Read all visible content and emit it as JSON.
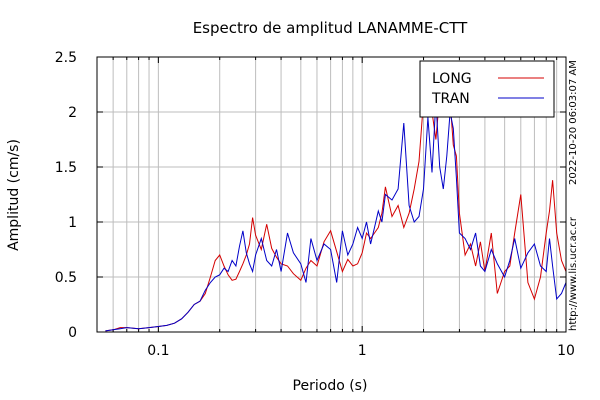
{
  "chart_data": {
    "type": "line",
    "title": "Espectro de amplitud LANAMME-CTT",
    "xlabel": "Periodo (s)",
    "ylabel": "Amplitud (cm/s)",
    "xscale": "log",
    "xlim": [
      0.05,
      10
    ],
    "ylim": [
      0,
      2.5
    ],
    "xticks": [
      {
        "v": 0.1,
        "label": "0.1"
      },
      {
        "v": 1,
        "label": "1"
      },
      {
        "v": 10,
        "label": "10"
      }
    ],
    "yticks": [
      {
        "v": 0,
        "label": "0"
      },
      {
        "v": 0.5,
        "label": "0.5"
      },
      {
        "v": 1,
        "label": "1"
      },
      {
        "v": 1.5,
        "label": "1.5"
      },
      {
        "v": 2,
        "label": "2"
      },
      {
        "v": 2.5,
        "label": "2.5"
      }
    ],
    "grid": true,
    "legend_position": "top-right",
    "series": [
      {
        "name": "LONG",
        "color": "#d40000",
        "x": [
          0.055,
          0.06,
          0.065,
          0.07,
          0.08,
          0.09,
          0.1,
          0.11,
          0.12,
          0.13,
          0.14,
          0.15,
          0.16,
          0.17,
          0.18,
          0.19,
          0.2,
          0.21,
          0.22,
          0.23,
          0.24,
          0.25,
          0.26,
          0.27,
          0.28,
          0.29,
          0.3,
          0.32,
          0.34,
          0.36,
          0.38,
          0.4,
          0.43,
          0.46,
          0.5,
          0.53,
          0.56,
          0.6,
          0.65,
          0.7,
          0.75,
          0.8,
          0.85,
          0.9,
          0.95,
          1.0,
          1.05,
          1.1,
          1.15,
          1.2,
          1.25,
          1.3,
          1.4,
          1.5,
          1.6,
          1.7,
          1.8,
          1.9,
          2.0,
          2.1,
          2.2,
          2.3,
          2.4,
          2.5,
          2.6,
          2.7,
          2.8,
          2.9,
          3.0,
          3.2,
          3.4,
          3.6,
          3.8,
          4.0,
          4.3,
          4.6,
          5.0,
          5.3,
          5.6,
          6.0,
          6.5,
          7.0,
          7.5,
          8.0,
          8.3,
          8.6,
          9.0,
          9.5,
          10.0
        ],
        "y": [
          0.01,
          0.02,
          0.04,
          0.04,
          0.03,
          0.04,
          0.05,
          0.06,
          0.08,
          0.12,
          0.18,
          0.25,
          0.28,
          0.35,
          0.5,
          0.65,
          0.7,
          0.6,
          0.52,
          0.47,
          0.48,
          0.55,
          0.62,
          0.7,
          0.8,
          1.04,
          0.88,
          0.75,
          0.98,
          0.76,
          0.68,
          0.62,
          0.6,
          0.53,
          0.47,
          0.58,
          0.65,
          0.6,
          0.82,
          0.92,
          0.73,
          0.55,
          0.66,
          0.6,
          0.62,
          0.72,
          0.9,
          0.85,
          0.9,
          0.95,
          1.08,
          1.32,
          1.05,
          1.15,
          0.95,
          1.08,
          1.3,
          1.55,
          2.1,
          2.43,
          2.0,
          1.75,
          2.15,
          2.4,
          2.3,
          2.1,
          1.7,
          1.6,
          1.08,
          0.7,
          0.8,
          0.6,
          0.82,
          0.55,
          0.9,
          0.35,
          0.55,
          0.6,
          0.9,
          1.25,
          0.45,
          0.3,
          0.5,
          0.9,
          1.1,
          1.38,
          0.9,
          0.65,
          0.55
        ]
      },
      {
        "name": "TRAN",
        "color": "#0000c8",
        "x": [
          0.055,
          0.06,
          0.065,
          0.07,
          0.08,
          0.09,
          0.1,
          0.11,
          0.12,
          0.13,
          0.14,
          0.15,
          0.16,
          0.17,
          0.18,
          0.19,
          0.2,
          0.21,
          0.22,
          0.23,
          0.24,
          0.25,
          0.26,
          0.27,
          0.28,
          0.29,
          0.3,
          0.32,
          0.34,
          0.36,
          0.38,
          0.4,
          0.43,
          0.46,
          0.5,
          0.53,
          0.56,
          0.6,
          0.65,
          0.7,
          0.75,
          0.8,
          0.85,
          0.9,
          0.95,
          1.0,
          1.05,
          1.1,
          1.15,
          1.2,
          1.25,
          1.3,
          1.4,
          1.5,
          1.6,
          1.7,
          1.8,
          1.9,
          2.0,
          2.1,
          2.2,
          2.3,
          2.4,
          2.5,
          2.6,
          2.7,
          2.8,
          2.9,
          3.0,
          3.2,
          3.4,
          3.6,
          3.8,
          4.0,
          4.3,
          4.6,
          5.0,
          5.3,
          5.6,
          6.0,
          6.5,
          7.0,
          7.5,
          8.0,
          8.3,
          8.6,
          9.0,
          9.5,
          10.0
        ],
        "y": [
          0.01,
          0.02,
          0.03,
          0.04,
          0.03,
          0.04,
          0.05,
          0.06,
          0.08,
          0.12,
          0.18,
          0.25,
          0.28,
          0.38,
          0.45,
          0.5,
          0.52,
          0.58,
          0.55,
          0.65,
          0.6,
          0.78,
          0.92,
          0.72,
          0.62,
          0.55,
          0.7,
          0.85,
          0.65,
          0.6,
          0.75,
          0.55,
          0.9,
          0.72,
          0.62,
          0.45,
          0.85,
          0.65,
          0.8,
          0.75,
          0.45,
          0.92,
          0.7,
          0.8,
          0.95,
          0.85,
          1.0,
          0.8,
          0.95,
          1.1,
          1.0,
          1.25,
          1.2,
          1.3,
          1.9,
          1.15,
          1.0,
          1.05,
          1.3,
          1.95,
          1.45,
          2.1,
          1.5,
          1.3,
          1.6,
          2.0,
          1.85,
          1.4,
          0.9,
          0.85,
          0.75,
          0.9,
          0.6,
          0.55,
          0.75,
          0.62,
          0.5,
          0.65,
          0.85,
          0.58,
          0.72,
          0.8,
          0.6,
          0.55,
          0.85,
          0.6,
          0.3,
          0.35,
          0.45
        ]
      }
    ]
  },
  "side_labels": {
    "timestamp": "2022-10-20 06:03:07 AM",
    "url": "http://www.lis.ucr.ac.cr"
  }
}
